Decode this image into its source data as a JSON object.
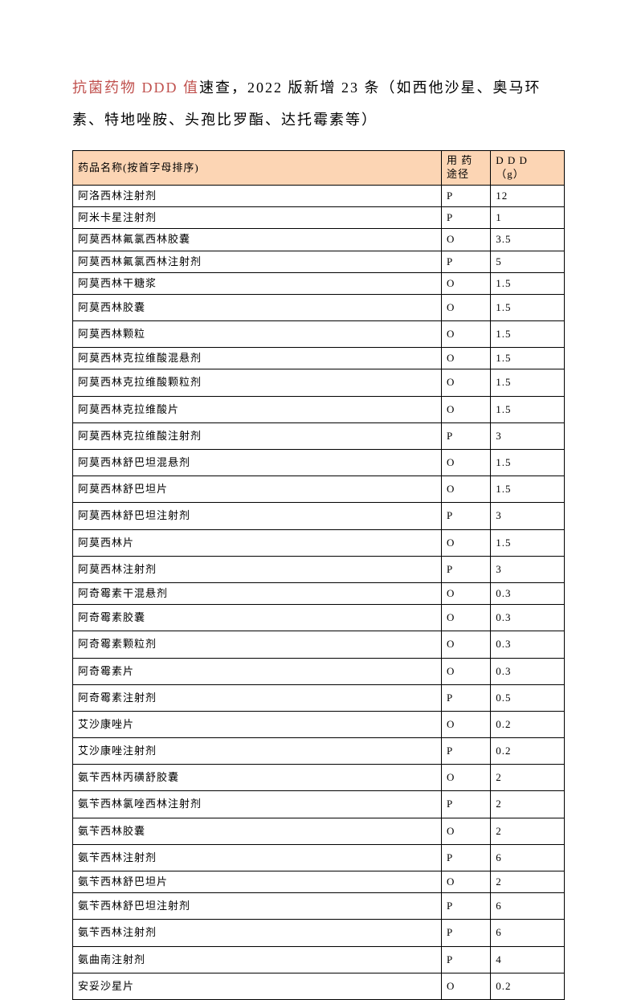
{
  "title": {
    "highlight": "抗菌药物 DDD 值",
    "rest1": "速查，2022 版新增 23 条（如西他沙星、奥马环",
    "line2": "素、特地唑胺、头孢比罗酯、达托霉素等）"
  },
  "table": {
    "headers": {
      "name": "药品名称(按首字母排序)",
      "route_l1": "用 药",
      "route_l2": "途径",
      "ddd_l1": "D D D",
      "ddd_l2": "（g）"
    },
    "header_bg": "#fcd5b4",
    "border_color": "#000000",
    "rows": [
      {
        "name": "阿洛西林注射剂",
        "route": "P",
        "ddd": "12",
        "tall": false
      },
      {
        "name": "阿米卡星注射剂",
        "route": "P",
        "ddd": "1",
        "tall": false
      },
      {
        "name": "阿莫西林氟氯西林胶囊",
        "route": "O",
        "ddd": "3.5",
        "tall": false
      },
      {
        "name": "阿莫西林氟氯西林注射剂",
        "route": "P",
        "ddd": "5",
        "tall": false
      },
      {
        "name": "阿莫西林干糖浆",
        "route": "O",
        "ddd": "1.5",
        "tall": false
      },
      {
        "name": "阿莫西林胶囊",
        "route": "O",
        "ddd": "1.5",
        "tall": true
      },
      {
        "name": "阿莫西林颗粒",
        "route": "O",
        "ddd": "1.5",
        "tall": true
      },
      {
        "name": "阿莫西林克拉维酸混悬剂",
        "route": "O",
        "ddd": "1.5",
        "tall": false
      },
      {
        "name": "阿莫西林克拉维酸颗粒剂",
        "route": "O",
        "ddd": "1.5",
        "tall": true
      },
      {
        "name": "阿莫西林克拉维酸片",
        "route": "O",
        "ddd": "1.5",
        "tall": true
      },
      {
        "name": "阿莫西林克拉维酸注射剂",
        "route": "P",
        "ddd": "3",
        "tall": true
      },
      {
        "name": "阿莫西林舒巴坦混悬剂",
        "route": "O",
        "ddd": "1.5",
        "tall": true
      },
      {
        "name": "阿莫西林舒巴坦片",
        "route": "O",
        "ddd": "1.5",
        "tall": true
      },
      {
        "name": "阿莫西林舒巴坦注射剂",
        "route": "P",
        "ddd": "3",
        "tall": true
      },
      {
        "name": "阿莫西林片",
        "route": "O",
        "ddd": "1.5",
        "tall": true
      },
      {
        "name": "阿莫西林注射剂",
        "route": "P",
        "ddd": "3",
        "tall": true
      },
      {
        "name": "阿奇霉素干混悬剂",
        "route": "O",
        "ddd": "0.3",
        "tall": false
      },
      {
        "name": "阿奇霉素胶囊",
        "route": "O",
        "ddd": "0.3",
        "tall": true
      },
      {
        "name": "阿奇霉素颗粒剂",
        "route": "O",
        "ddd": "0.3",
        "tall": true
      },
      {
        "name": "阿奇霉素片",
        "route": "O",
        "ddd": "0.3",
        "tall": true
      },
      {
        "name": "阿奇霉素注射剂",
        "route": "P",
        "ddd": "0.5",
        "tall": true
      },
      {
        "name": "艾沙康唑片",
        "route": "O",
        "ddd": "0.2",
        "tall": true
      },
      {
        "name": "艾沙康唑注射剂",
        "route": "P",
        "ddd": "0.2",
        "tall": true
      },
      {
        "name": "氨苄西林丙磺舒胶囊",
        "route": "O",
        "ddd": "2",
        "tall": true
      },
      {
        "name": "氨苄西林氯唑西林注射剂",
        "route": "P",
        "ddd": "2",
        "tall": true
      },
      {
        "name": "氨苄西林胶囊",
        "route": "O",
        "ddd": "2",
        "tall": true
      },
      {
        "name": "氨苄西林注射剂",
        "route": "P",
        "ddd": "6",
        "tall": true
      },
      {
        "name": "氨苄西林舒巴坦片",
        "route": "O",
        "ddd": "2",
        "tall": false
      },
      {
        "name": "氨苄西林舒巴坦注射剂",
        "route": "P",
        "ddd": "6",
        "tall": true
      },
      {
        "name": "氨苄西林注射剂",
        "route": "P",
        "ddd": "6",
        "tall": true
      },
      {
        "name": "氨曲南注射剂",
        "route": "P",
        "ddd": "4",
        "tall": true
      },
      {
        "name": "安妥沙星片",
        "route": "O",
        "ddd": "0.2",
        "tall": true
      }
    ]
  }
}
